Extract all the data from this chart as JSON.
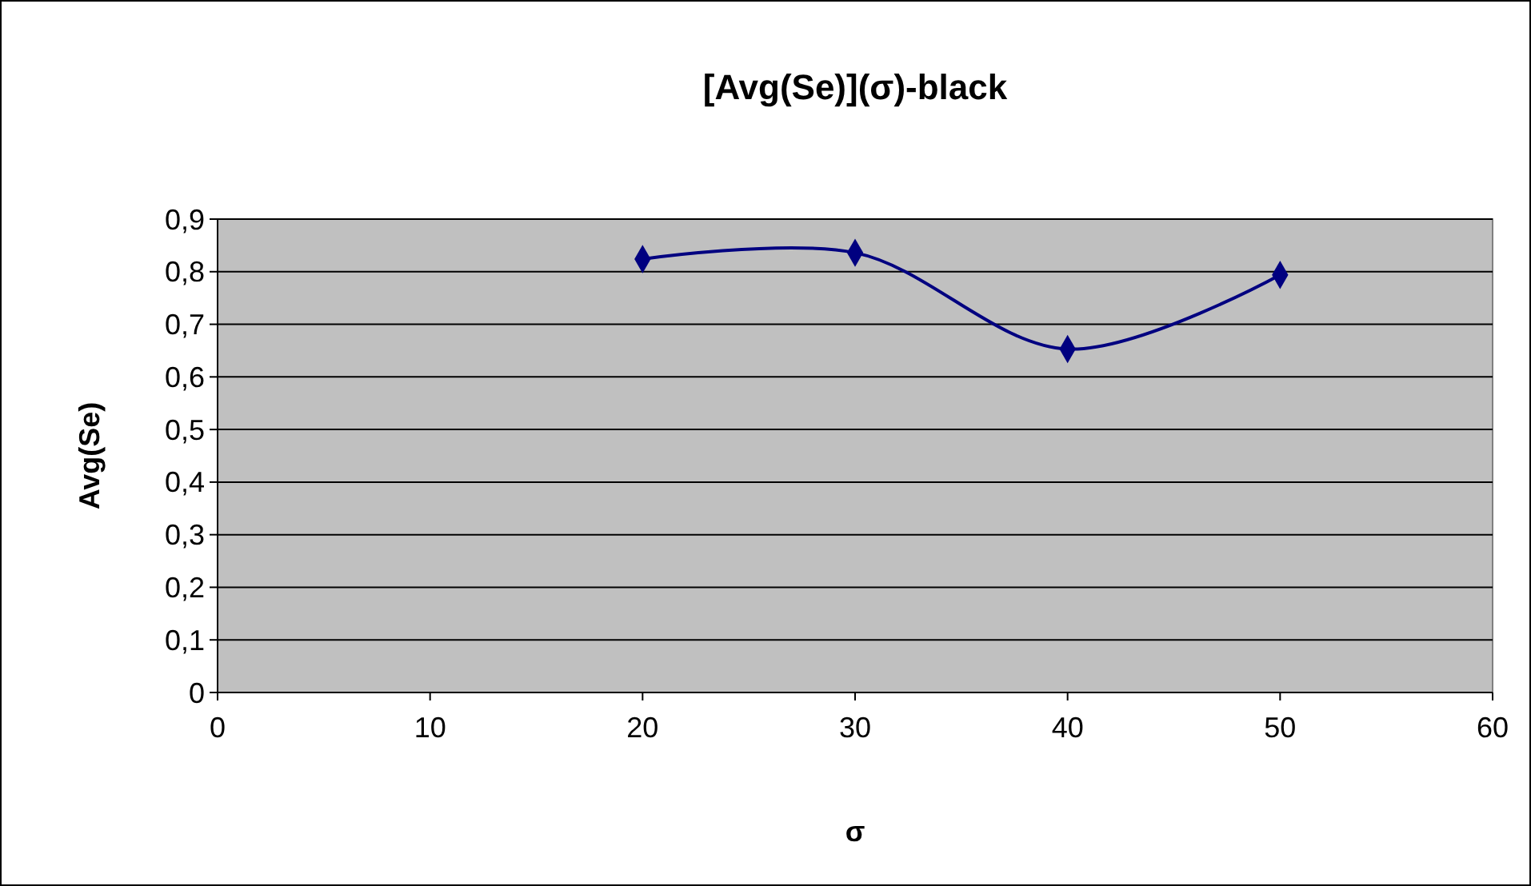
{
  "chart_data": {
    "type": "line",
    "title": "[Avg(Se)](σ)-black",
    "xlabel": "σ",
    "ylabel": "Avg(Se)",
    "x": [
      20,
      30,
      40,
      50
    ],
    "series": [
      {
        "color": "#000080",
        "values": [
          0.824,
          0.836,
          0.653,
          0.794
        ]
      }
    ],
    "xlim": [
      0,
      60
    ],
    "xticks": [
      0,
      10,
      20,
      30,
      40,
      50,
      60
    ],
    "ylim": [
      0,
      0.9
    ],
    "yticks": [
      {
        "value": 0,
        "label": "0"
      },
      {
        "value": 0.1,
        "label": "0,1"
      },
      {
        "value": 0.2,
        "label": "0,2"
      },
      {
        "value": 0.3,
        "label": "0,3"
      },
      {
        "value": 0.4,
        "label": "0,4"
      },
      {
        "value": 0.5,
        "label": "0,5"
      },
      {
        "value": 0.6,
        "label": "0,6"
      },
      {
        "value": 0.7,
        "label": "0,7"
      },
      {
        "value": 0.8,
        "label": "0,8"
      },
      {
        "value": 0.9,
        "label": "0,9"
      }
    ],
    "grid": "y",
    "marker": "diamond",
    "line_style": "solid"
  }
}
